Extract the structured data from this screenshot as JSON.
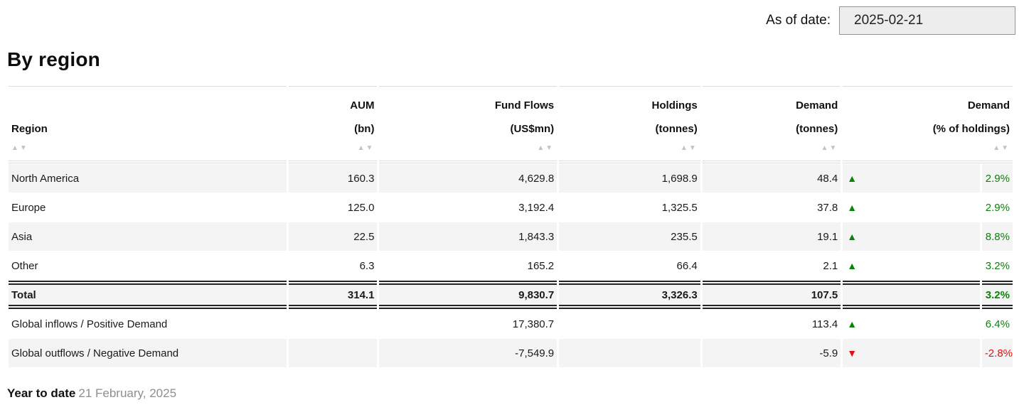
{
  "as_of": {
    "label": "As of date:",
    "value": "2025-02-21"
  },
  "title": "By region",
  "colors": {
    "positive": "#0a830a",
    "negative": "#e80f0f",
    "stripe": "#f4f4f4"
  },
  "table": {
    "sort_asc": "▲",
    "sort_desc": "▼",
    "columns": [
      {
        "line1": "",
        "line2": "Region"
      },
      {
        "line1": "AUM",
        "line2": "(bn)"
      },
      {
        "line1": "Fund Flows",
        "line2": "(US$mn)"
      },
      {
        "line1": "Holdings",
        "line2": "(tonnes)"
      },
      {
        "line1": "Demand",
        "line2": "(tonnes)"
      },
      {
        "line1": "Demand",
        "line2": "(% of holdings)"
      }
    ],
    "rows": [
      {
        "region": "North America",
        "aum": "160.3",
        "flows": "4,629.8",
        "holdings": "1,698.9",
        "demand": "48.4",
        "arrow": "▲",
        "arrow_class": "arrow up",
        "pct": "2.9%",
        "pct_class": "pct up"
      },
      {
        "region": "Europe",
        "aum": "125.0",
        "flows": "3,192.4",
        "holdings": "1,325.5",
        "demand": "37.8",
        "arrow": "▲",
        "arrow_class": "arrow up",
        "pct": "2.9%",
        "pct_class": "pct up"
      },
      {
        "region": "Asia",
        "aum": "22.5",
        "flows": "1,843.3",
        "holdings": "235.5",
        "demand": "19.1",
        "arrow": "▲",
        "arrow_class": "arrow up",
        "pct": "8.8%",
        "pct_class": "pct up"
      },
      {
        "region": "Other",
        "aum": "6.3",
        "flows": "165.2",
        "holdings": "66.4",
        "demand": "2.1",
        "arrow": "▲",
        "arrow_class": "arrow up",
        "pct": "3.2%",
        "pct_class": "pct up"
      },
      {
        "region": "Total",
        "aum": "314.1",
        "flows": "9,830.7",
        "holdings": "3,326.3",
        "demand": "107.5",
        "arrow": "",
        "arrow_class": "arrow",
        "pct": "3.2%",
        "pct_class": "pct up"
      },
      {
        "region": "Global inflows / Positive Demand",
        "aum": "",
        "flows": "17,380.7",
        "holdings": "",
        "demand": "113.4",
        "arrow": "▲",
        "arrow_class": "arrow up",
        "pct": "6.4%",
        "pct_class": "pct up"
      },
      {
        "region": "Global outflows / Negative Demand",
        "aum": "",
        "flows": "-7,549.9",
        "holdings": "",
        "demand": "-5.9",
        "arrow": "▼",
        "arrow_class": "arrow down",
        "pct": "-2.8%",
        "pct_class": "pct down"
      }
    ]
  },
  "footer": {
    "bold": "Year to date",
    "muted": "21 February, 2025"
  }
}
